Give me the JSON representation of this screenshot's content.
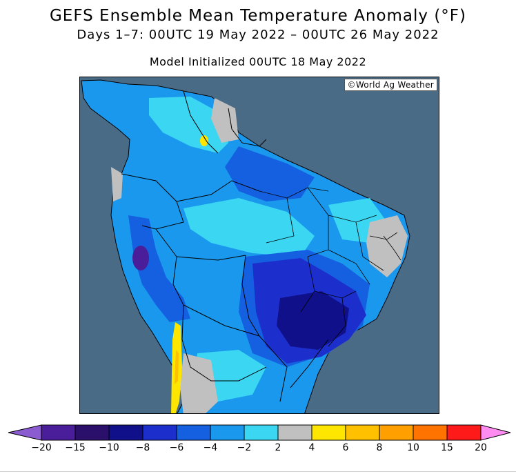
{
  "title": "GEFS Ensemble Mean Temperature Anomaly (°F)",
  "subtitle": "Days 1–7: 00UTC 19 May 2022 – 00UTC 26 May 2022",
  "init_line": "Model Initialized 00UTC 18 May 2022",
  "credit": "©World Ag Weather",
  "colors": {
    "ocean": "#4a6b86",
    "boundary": "#000000",
    "legend_bins": [
      "#4a1d9a",
      "#2a0f6b",
      "#10108a",
      "#1c2fcc",
      "#1560e0",
      "#1a98ee",
      "#3ad6f2",
      "#c0c0c0",
      "#ffe600",
      "#ffc000",
      "#ffa000",
      "#ff7400",
      "#ff1a1a",
      "#ff1ab4",
      "#ff8cf0"
    ]
  },
  "legend": {
    "ticks": [
      "−20",
      "−15",
      "−10",
      "−8",
      "−6",
      "−4",
      "−2",
      "2",
      "4",
      "6",
      "8",
      "10",
      "15",
      "20"
    ]
  }
}
